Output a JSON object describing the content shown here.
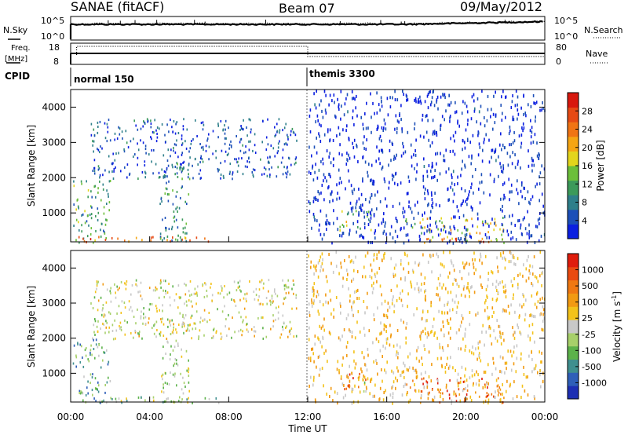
{
  "header": {
    "radar": "SANAE (fitACF)",
    "beam": "Beam 07",
    "date": "09/May/2012"
  },
  "noise_panel": {
    "left_label": "N.Sky",
    "right_label": "N.Search",
    "left_ticks": [
      "10^5",
      "10^0"
    ],
    "right_ticks": [
      "10^5",
      "10^0"
    ]
  },
  "freq_panel": {
    "left_label_1": "Freq.",
    "left_label_2": "[MHz]",
    "right_label": "Nave",
    "left_ticks": [
      "18",
      "8"
    ],
    "right_ticks": [
      "80",
      "0"
    ]
  },
  "cpid_panel": {
    "label": "CPID",
    "modes": [
      {
        "name": "normal 150",
        "start_hour": 0
      },
      {
        "name": "themis 3300",
        "start_hour": 12
      }
    ]
  },
  "x_axis": {
    "title": "Time UT",
    "tick_labels": [
      "00:00",
      "04:00",
      "08:00",
      "12:00",
      "16:00",
      "20:00",
      "00:00"
    ]
  },
  "chart_data": [
    {
      "type": "heatmap",
      "name": "power",
      "ylabel": "Slant Range [km]",
      "ylim": [
        180,
        4500
      ],
      "y_ticks": [
        "1000",
        "2000",
        "3000",
        "4000"
      ],
      "xlim_hours": [
        0,
        24
      ],
      "colorbar": {
        "title": "Power [dB]",
        "ticks": [
          "28",
          "24",
          "20",
          "16",
          "12",
          "8",
          "4"
        ],
        "colors": [
          "#0b1fe0",
          "#1c4fb8",
          "#2e7f8a",
          "#3c9a5a",
          "#6cbf3a",
          "#e3d51c",
          "#f5a513",
          "#f07414",
          "#e64a14",
          "#d8180e"
        ]
      },
      "regions": [
        {
          "t0": 0.1,
          "t1": 2.0,
          "r0": 180,
          "r1": 2000,
          "level": 0.35
        },
        {
          "t0": 0.2,
          "t1": 7.5,
          "r0": 180,
          "r1": 350,
          "level": 0.75
        },
        {
          "t0": 4.5,
          "t1": 6.0,
          "r0": 200,
          "r1": 2500,
          "level": 0.3
        },
        {
          "t0": 1.0,
          "t1": 11.5,
          "r0": 2000,
          "r1": 3700,
          "level": 0.15
        },
        {
          "t0": 13.6,
          "t1": 15.2,
          "r0": 500,
          "r1": 1100,
          "level": 0.45
        },
        {
          "t0": 16.9,
          "t1": 17.5,
          "r0": 500,
          "r1": 900,
          "level": 0.4
        },
        {
          "t0": 17.6,
          "t1": 22.0,
          "r0": 180,
          "r1": 900,
          "level": 0.55
        },
        {
          "t0": 18.0,
          "t1": 21.0,
          "r0": 180,
          "r1": 300,
          "level": 0.95
        },
        {
          "t0": 12.0,
          "t1": 24.0,
          "r0": 180,
          "r1": 4500,
          "level": 0.08
        }
      ]
    },
    {
      "type": "heatmap",
      "name": "velocity",
      "ylabel": "Slant Range [km]",
      "ylim": [
        180,
        4500
      ],
      "y_ticks": [
        "1000",
        "2000",
        "3000",
        "4000"
      ],
      "xlim_hours": [
        0,
        24
      ],
      "colorbar": {
        "title": "Velocity [m s",
        "title_sup": "-1",
        "title_end": "]",
        "ticks": [
          "1000",
          "500",
          "100",
          "25",
          "-25",
          "-100",
          "-500",
          "-1000"
        ],
        "colors": [
          "#1d2fb3",
          "#2f5fb8",
          "#3f8f8f",
          "#5cb24a",
          "#a7d06a",
          "#c8c8c8",
          "#f3c21a",
          "#f29a12",
          "#f07812",
          "#ea4a10",
          "#e01c0c"
        ]
      },
      "regions": [
        {
          "t0": 0.1,
          "t1": 2.0,
          "r0": 180,
          "r1": 2000,
          "level": 0.3
        },
        {
          "t0": 0.2,
          "t1": 7.5,
          "r0": 180,
          "r1": 350,
          "level": 0.4
        },
        {
          "t0": 4.5,
          "t1": 6.0,
          "r0": 200,
          "r1": 2500,
          "level": 0.45
        },
        {
          "t0": 1.0,
          "t1": 11.5,
          "r0": 2000,
          "r1": 3700,
          "level": 0.5
        },
        {
          "t0": 13.6,
          "t1": 15.2,
          "r0": 500,
          "r1": 1100,
          "level": 0.78
        },
        {
          "t0": 14.6,
          "t1": 15.0,
          "r0": 500,
          "r1": 800,
          "level": 0.35
        },
        {
          "t0": 16.9,
          "t1": 17.5,
          "r0": 500,
          "r1": 900,
          "level": 0.8
        },
        {
          "t0": 17.6,
          "t1": 22.0,
          "r0": 180,
          "r1": 900,
          "level": 0.82
        },
        {
          "t0": 12.0,
          "t1": 24.0,
          "r0": 180,
          "r1": 4500,
          "level": 0.6
        }
      ]
    }
  ]
}
